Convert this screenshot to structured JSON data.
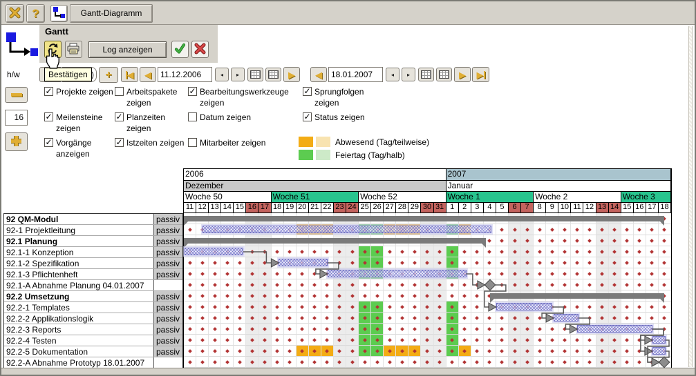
{
  "toolbar": {
    "tab_label": "Gantt-Diagramm",
    "close_icon": "close-x",
    "help_icon": "?"
  },
  "panel": {
    "title": "Gantt",
    "log_button": "Log anzeigen",
    "tooltip": "Bestätigen"
  },
  "controls": {
    "hw_label": "h/w",
    "hidden_field_fragment": ")",
    "date_from": "11.12.2006",
    "date_to": "18.01.2007",
    "row_height": "16"
  },
  "checkboxes": [
    {
      "label": "Projekte zeigen",
      "checked": true
    },
    {
      "label": "Arbeitspakete zeigen",
      "checked": false
    },
    {
      "label": "Bearbeitungswerkzeuge zeigen",
      "checked": true
    },
    {
      "label": "Sprungfolgen zeigen",
      "checked": true
    },
    {
      "label": "Meilensteine zeigen",
      "checked": true
    },
    {
      "label": "Planzeiten zeigen",
      "checked": true
    },
    {
      "label": "Datum zeigen",
      "checked": false
    },
    {
      "label": "Status zeigen",
      "checked": true
    },
    {
      "label": "Vorgänge anzeigen",
      "checked": true
    },
    {
      "label": "Istzeiten zeigen",
      "checked": true
    },
    {
      "label": "Mitarbeiter zeigen",
      "checked": false
    }
  ],
  "legend": [
    {
      "label": "Abwesend (Tag/teilweise)",
      "full": "#f3ac15",
      "partial": "#f8e3b0"
    },
    {
      "label": "Feiertag (Tag/halb)",
      "full": "#5ccc50",
      "partial": "#cdeac8"
    }
  ],
  "chart_data": {
    "type": "gantt",
    "timeline": {
      "years": [
        {
          "label": "2006",
          "days": 21,
          "bg": "#ffffff"
        },
        {
          "label": "2007",
          "days": 18,
          "bg": "#a9c4ce"
        }
      ],
      "months": [
        {
          "label": "Dezember",
          "days": 21,
          "bg": "#c8c8c8"
        },
        {
          "label": "Januar",
          "days": 18,
          "bg": "#ffffff"
        }
      ],
      "weeks": [
        {
          "label": "Woche 50",
          "days": 7,
          "bg": "#ffffff"
        },
        {
          "label": "Woche 51",
          "days": 7,
          "bg": "#28c48e"
        },
        {
          "label": "Woche 52",
          "days": 7,
          "bg": "#ffffff"
        },
        {
          "label": "Woche 1",
          "days": 7,
          "bg": "#28c48e"
        },
        {
          "label": "Woche 2",
          "days": 7,
          "bg": "#ffffff"
        },
        {
          "label": "Woche 3",
          "days": 4,
          "bg": "#28c48e"
        }
      ],
      "day_numbers": [
        "11",
        "12",
        "13",
        "14",
        "15",
        "16",
        "17",
        "18",
        "19",
        "20",
        "21",
        "22",
        "23",
        "24",
        "25",
        "26",
        "27",
        "28",
        "29",
        "30",
        "31",
        "1",
        "2",
        "3",
        "4",
        "5",
        "6",
        "7",
        "8",
        "9",
        "10",
        "11",
        "12",
        "13",
        "14",
        "15",
        "16",
        "17",
        "18"
      ],
      "weekend_cols": [
        5,
        6,
        12,
        13,
        19,
        20,
        26,
        27,
        33,
        34
      ]
    },
    "tasks": [
      {
        "name": "92 QM-Modul",
        "status": "passiv",
        "bold": true,
        "kind": "summary",
        "start": 0,
        "end": 38.45
      },
      {
        "name": "92-1 Projektleitung",
        "status": "passiv",
        "bold": false,
        "kind": "task",
        "start": 1.5,
        "end": 24.6,
        "holidays": [
          14,
          15,
          21
        ],
        "absences": [
          9,
          10,
          11,
          16,
          17,
          18,
          22
        ]
      },
      {
        "name": "92.1 Planung",
        "status": "passiv",
        "bold": true,
        "kind": "summary",
        "start": 0,
        "end": 24.2
      },
      {
        "name": "92.1-1 Konzeption",
        "status": "passiv",
        "bold": false,
        "kind": "task",
        "start": 0.08,
        "end": 4.75,
        "holidays": [
          14,
          15,
          21
        ]
      },
      {
        "name": "92.1-2 Spezifikation",
        "status": "passiv",
        "bold": false,
        "kind": "task",
        "start": 7.6,
        "end": 11.5,
        "holidays": [
          14,
          15,
          21
        ]
      },
      {
        "name": "92.1-3 Pflichtenheft",
        "status": "passiv",
        "bold": false,
        "kind": "task",
        "start": 11.5,
        "end": 22.6,
        "holidays": [
          14,
          15,
          21
        ]
      },
      {
        "name": "92.1-A Abnahme Planung 04.01.2007",
        "status": "",
        "bold": false,
        "kind": "milestone",
        "at": 24.5
      },
      {
        "name": "92.2 Umsetzung",
        "status": "passiv",
        "bold": true,
        "kind": "summary",
        "start": 24.5,
        "end": 38.45
      },
      {
        "name": "92.2-1 Templates",
        "status": "passiv",
        "bold": false,
        "kind": "task",
        "start": 25.0,
        "end": 29.5,
        "holidays": [
          14,
          15,
          21
        ]
      },
      {
        "name": "92.2-2 Applikationslogik",
        "status": "passiv",
        "bold": false,
        "kind": "task",
        "start": 29.6,
        "end": 31.6,
        "holidays": [
          14,
          15,
          21
        ]
      },
      {
        "name": "92.2-3 Reports",
        "status": "passiv",
        "bold": false,
        "kind": "task",
        "start": 31.5,
        "end": 37.5,
        "holidays": [
          14,
          15,
          21
        ]
      },
      {
        "name": "92.2-4 Testen",
        "status": "passiv",
        "bold": false,
        "kind": "task",
        "start": 37.5,
        "end": 38.55,
        "holidays": [
          14,
          15,
          21
        ]
      },
      {
        "name": "92.2-5 Dokumentation",
        "status": "passiv",
        "bold": false,
        "kind": "task",
        "start": 37.5,
        "end": 38.55,
        "holidays": [
          14,
          15,
          21
        ],
        "absences": [
          9,
          10,
          11,
          16,
          17,
          18,
          22
        ]
      },
      {
        "name": "92.2-A Abnahme Prototyp 18.01.2007",
        "status": "",
        "bold": false,
        "kind": "milestone",
        "at": 38.45
      }
    ],
    "links": [
      {
        "from": 3,
        "to": 4
      },
      {
        "from": 4,
        "to": 5
      },
      {
        "from": 5,
        "to": 6
      },
      {
        "from": 6,
        "to": 8
      },
      {
        "from": 8,
        "to": 9
      },
      {
        "from": 9,
        "to": 10
      },
      {
        "from": 10,
        "to": 11
      },
      {
        "from": 10,
        "to": 12
      },
      {
        "from": 11,
        "to": 13
      },
      {
        "from": 12,
        "to": 13
      }
    ]
  }
}
